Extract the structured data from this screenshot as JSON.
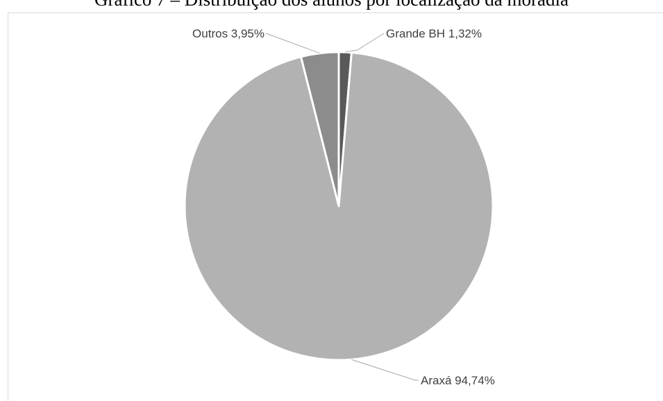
{
  "chart_data": {
    "type": "pie",
    "title": "Gráfico 7 – Distribuição dos alunos por localização da moradia",
    "slices": [
      {
        "label": "Grande BH 1,32%",
        "value": 1.32,
        "color": "#595959"
      },
      {
        "label": "Araxá 94,74%",
        "value": 94.74,
        "color": "#b2b2b2"
      },
      {
        "label": "Outros 3,95%",
        "value": 3.95,
        "color": "#8c8c8c"
      }
    ],
    "legend": "none"
  }
}
